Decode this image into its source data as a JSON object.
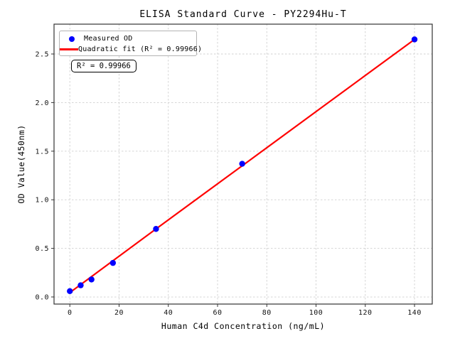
{
  "title": "ELISA Standard Curve - PY2294Hu-T",
  "annotation": {
    "text": "R² = 0.99966"
  },
  "legend": {
    "position": "upper left",
    "items": [
      {
        "label": "Measured OD",
        "marker": "circle",
        "color": "#0000ff"
      },
      {
        "label": "Quadratic fit (R² = 0.99966)",
        "marker": "line",
        "color": "#ff0000"
      }
    ]
  },
  "colors": {
    "points": "#0000ff",
    "fit_line": "#ff0000",
    "grid": "#d0d0d0",
    "axes": "#333333",
    "background": "#ffffff"
  },
  "chart_data": {
    "type": "scatter",
    "title": "ELISA Standard Curve - PY2294Hu-T",
    "xlabel": "Human C4d Concentration (ng/mL)",
    "ylabel": "OD Value(450nm)",
    "xlim": [
      -6.42,
      147.2
    ],
    "ylim": [
      -0.073,
      2.807
    ],
    "xticks": [
      0,
      20,
      40,
      60,
      80,
      100,
      120,
      140
    ],
    "xtick_labels": [
      "0",
      "20",
      "40",
      "60",
      "80",
      "100",
      "120",
      "140"
    ],
    "yticks": [
      0.0,
      0.5,
      1.0,
      1.5,
      2.0,
      2.5
    ],
    "ytick_labels": [
      "0.0",
      "0.5",
      "1.0",
      "1.5",
      "2.0",
      "2.5"
    ],
    "grid": true,
    "grid_style": "dashed",
    "legend_position": "upper left",
    "r_squared": 0.99966,
    "series": [
      {
        "name": "Measured OD",
        "type": "scatter",
        "color": "#0000ff",
        "x": [
          0,
          4.4,
          8.8,
          17.5,
          35,
          70,
          140
        ],
        "y": [
          0.06,
          0.12,
          0.18,
          0.35,
          0.7,
          1.37,
          2.65
        ]
      },
      {
        "name": "Quadratic fit (R² = 0.99966)",
        "type": "line",
        "color": "#ff0000",
        "x": [
          0,
          35,
          70,
          105,
          140
        ],
        "y": [
          0.045,
          0.7,
          1.35,
          2.0,
          2.65
        ]
      }
    ]
  }
}
